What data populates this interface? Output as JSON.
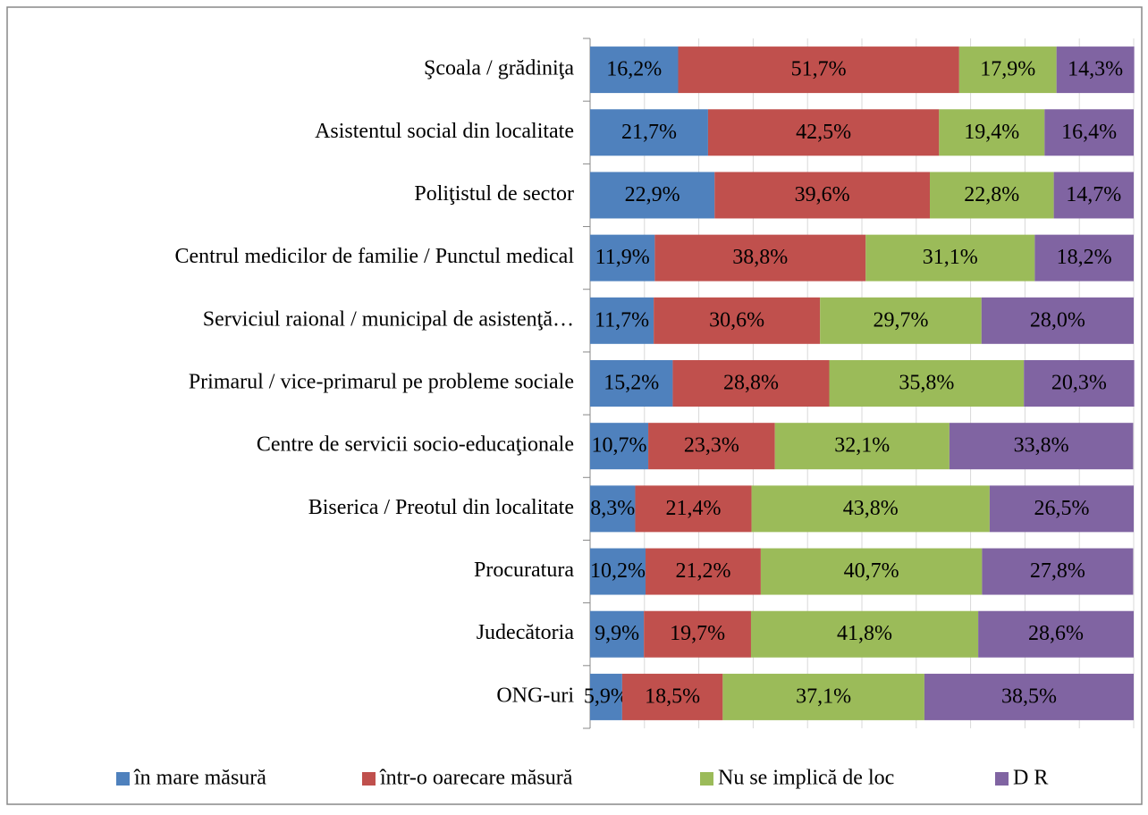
{
  "chart_data": {
    "type": "stacked-bar-horizontal",
    "categories": [
      "Şcoala / grădiniţa",
      "Asistentul social din localitate",
      "Poliţistul de sector",
      "Centrul medicilor de familie / Punctul medical",
      "Serviciul raional / municipal de asistenţă…",
      "Primarul / vice-primarul pe probleme sociale",
      "Centre de servicii socio-educaţionale",
      "Biserica / Preotul din localitate",
      "Procuratura",
      "Judecătoria",
      "ONG-uri"
    ],
    "series": [
      {
        "name": "în mare măsură",
        "color": "#4f81bd",
        "values": [
          16.2,
          21.7,
          22.9,
          11.9,
          11.7,
          15.2,
          10.7,
          8.3,
          10.2,
          9.9,
          5.9
        ],
        "value_labels": [
          "16,2%",
          "21,7%",
          "22,9%",
          "11,9%",
          "11,7%",
          "15,2%",
          "10,7%",
          "8,3%",
          "10,2%",
          "9,9%",
          "5,9%"
        ]
      },
      {
        "name": "într-o oarecare măsură",
        "color": "#c0504d",
        "values": [
          51.7,
          42.5,
          39.6,
          38.8,
          30.6,
          28.8,
          23.3,
          21.4,
          21.2,
          19.7,
          18.5
        ],
        "value_labels": [
          "51,7%",
          "42,5%",
          "39,6%",
          "38,8%",
          "30,6%",
          "28,8%",
          "23,3%",
          "21,4%",
          "21,2%",
          "19,7%",
          "18,5%"
        ]
      },
      {
        "name": "Nu se implică de loc",
        "color": "#9bbb59",
        "values": [
          17.9,
          19.4,
          22.8,
          31.1,
          29.7,
          35.8,
          32.1,
          43.8,
          40.7,
          41.8,
          37.1
        ],
        "value_labels": [
          "17,9%",
          "19,4%",
          "22,8%",
          "31,1%",
          "29,7%",
          "35,8%",
          "32,1%",
          "43,8%",
          "40,7%",
          "41,8%",
          "37,1%"
        ]
      },
      {
        "name": "D R",
        "color": "#8064a2",
        "values": [
          14.3,
          16.4,
          14.7,
          18.2,
          28.0,
          20.3,
          33.8,
          26.5,
          27.8,
          28.6,
          38.5
        ],
        "value_labels": [
          "14,3%",
          "16,4%",
          "14,7%",
          "18,2%",
          "28,0%",
          "20,3%",
          "33,8%",
          "26,5%",
          "27,8%",
          "28,6%",
          "38,5%"
        ]
      }
    ],
    "xlim": [
      0,
      100
    ],
    "xticks": [
      0,
      10,
      20,
      30,
      40,
      50,
      60,
      70,
      80,
      90,
      100
    ],
    "grid": true,
    "legend": "bottom"
  }
}
